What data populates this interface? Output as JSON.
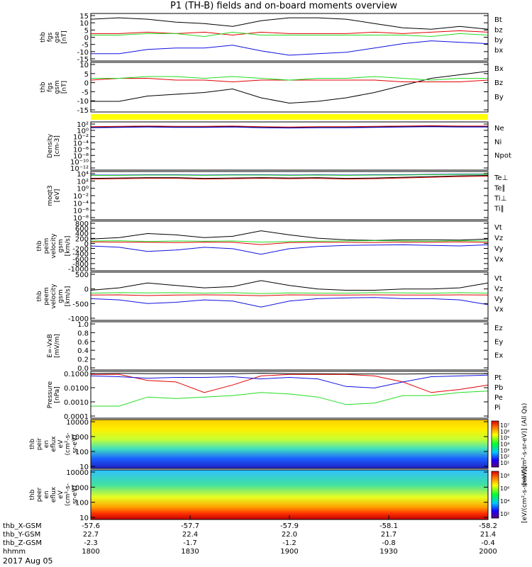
{
  "title": "P1 (TH-B) fields and on-board moments overview",
  "date_label": "2017 Aug 05",
  "colors": {
    "black": "#000000",
    "red": "#e00000",
    "green": "#22dd22",
    "blue": "#1010e0",
    "yellow": "#ffff00"
  },
  "chart_data": [
    {
      "type": "line",
      "panel": "fgs-gse",
      "ylabel": [
        "thb",
        "fgs",
        "gse",
        "[nT]"
      ],
      "y_ticks": [
        "15",
        "10",
        "5",
        "0",
        "-5",
        "-10",
        "-15"
      ],
      "ylim": [
        -17,
        16
      ],
      "series": [
        {
          "name": "Bt",
          "color": "#000000",
          "values": [
            12,
            13,
            12,
            10,
            9,
            7,
            11,
            13,
            13,
            12,
            9,
            6,
            5,
            7,
            5
          ]
        },
        {
          "name": "bz",
          "color": "#e00000",
          "values": [
            2,
            2,
            3,
            2,
            3,
            1,
            3,
            2,
            2,
            2,
            3,
            2,
            3,
            4,
            3
          ]
        },
        {
          "name": "by",
          "color": "#22dd22",
          "values": [
            1,
            1,
            2,
            2,
            0,
            3,
            1,
            1,
            1,
            1,
            1,
            1,
            0,
            2,
            1
          ]
        },
        {
          "name": "bx",
          "color": "#1010e0",
          "values": [
            -12,
            -12,
            -9,
            -8,
            -8,
            -6,
            -10,
            -13,
            -12,
            -11,
            -8,
            -5,
            -3,
            -4,
            -5
          ]
        }
      ]
    },
    {
      "type": "line",
      "panel": "fgs-gsm",
      "ylabel": [
        "thb",
        "fgs",
        "gsm",
        "[nT]"
      ],
      "y_ticks": [
        "10",
        "5",
        "0",
        "-5",
        "-10",
        "-15"
      ],
      "ylim": [
        -17,
        11
      ],
      "series": [
        {
          "name": "Bx",
          "color": "#000000",
          "values": [
            -11,
            -11,
            -8,
            -7,
            -6,
            -4,
            -9,
            -12,
            -11,
            -9,
            -6,
            -2,
            2,
            4,
            6
          ]
        },
        {
          "name": "Bz",
          "color": "#e00000",
          "values": [
            1,
            2,
            2,
            1,
            1,
            0,
            1,
            1,
            1,
            1,
            1,
            0,
            0,
            0,
            1
          ]
        },
        {
          "name": "By",
          "color": "#22dd22",
          "values": [
            2,
            2,
            3,
            3,
            2,
            3,
            2,
            1,
            2,
            2,
            3,
            2,
            1,
            2,
            2
          ]
        }
      ]
    },
    {
      "type": "line",
      "panel": "density",
      "ylabel": [
        "Density",
        "[cm-3]"
      ],
      "y_ticks": [
        "10²",
        "10⁰",
        "10⁻²",
        "10⁻⁴",
        "10⁻⁶",
        "10⁻⁸",
        "10⁻¹⁰",
        "10⁻¹²"
      ],
      "log": true,
      "ylim": [
        -13,
        2
      ],
      "series": [
        {
          "name": "Ne",
          "color": "#e00000",
          "values": [
            0.5,
            0.6,
            0.7,
            0.6,
            0.6,
            0.7,
            0.5,
            0.4,
            0.5,
            0.5,
            0.6,
            0.7,
            0.8,
            0.7,
            0.7
          ]
        },
        {
          "name": "Ni",
          "color": "#000000",
          "values": [
            0.3,
            0.4,
            0.5,
            0.4,
            0.4,
            0.5,
            0.3,
            0.2,
            0.3,
            0.3,
            0.4,
            0.5,
            0.6,
            0.5,
            0.5
          ]
        },
        {
          "name": "Npot",
          "color": "#1010e0",
          "values": [
            0.2,
            0.3,
            0.4,
            0.3,
            0.3,
            0.4,
            0.2,
            0.1,
            0.2,
            0.2,
            0.3,
            0.4,
            0.5,
            0.4,
            0.4
          ]
        }
      ]
    },
    {
      "type": "line",
      "panel": "temperature",
      "ylabel": [
        "moqt3",
        "[eV]"
      ],
      "y_ticks": [
        "10⁴",
        "10²",
        "10⁰",
        "10⁻²",
        "10⁻⁴",
        "10⁻⁶",
        "10⁻⁸"
      ],
      "log": true,
      "ylim": [
        -9,
        4.5
      ],
      "series": [
        {
          "name": "Te⊥",
          "color": "#e00000",
          "values": [
            2.4,
            2.5,
            2.6,
            2.6,
            2.4,
            2.5,
            2.6,
            2.5,
            2.6,
            2.4,
            2.5,
            2.7,
            2.9,
            3.1,
            3.2
          ]
        },
        {
          "name": "Te∥",
          "color": "#000000",
          "values": [
            2.6,
            2.7,
            2.8,
            2.8,
            2.6,
            2.7,
            2.8,
            2.7,
            2.8,
            2.6,
            2.7,
            2.9,
            3.1,
            3.3,
            3.4
          ]
        },
        {
          "name": "Ti⊥",
          "color": "#1010e0",
          "values": [
            3.5,
            3.5,
            3.6,
            3.6,
            3.5,
            3.6,
            3.6,
            3.5,
            3.6,
            3.5,
            3.6,
            3.6,
            3.7,
            3.8,
            3.8
          ]
        },
        {
          "name": "Ti∥",
          "color": "#22dd22",
          "values": [
            3.4,
            3.4,
            3.5,
            3.5,
            3.4,
            3.5,
            3.5,
            3.4,
            3.5,
            3.4,
            3.5,
            3.5,
            3.6,
            3.7,
            3.7
          ]
        }
      ]
    },
    {
      "type": "line",
      "panel": "peim-velocity",
      "ylabel": [
        "thb",
        "peim",
        "velocity",
        "gsm",
        "[km/s]"
      ],
      "y_ticks": [
        "800",
        "600",
        "400",
        "200",
        "0",
        "-200",
        "-400",
        "-600",
        "-800",
        "-1000"
      ],
      "ylim": [
        -1000,
        800
      ],
      "series": [
        {
          "name": "Vt",
          "color": "#000000",
          "values": [
            150,
            200,
            350,
            300,
            200,
            250,
            450,
            300,
            180,
            120,
            100,
            120,
            120,
            110,
            150
          ]
        },
        {
          "name": "Vz",
          "color": "#e00000",
          "values": [
            50,
            40,
            30,
            20,
            40,
            30,
            -50,
            20,
            30,
            30,
            20,
            40,
            30,
            50,
            30
          ]
        },
        {
          "name": "Vy",
          "color": "#22dd22",
          "values": [
            80,
            90,
            60,
            80,
            70,
            80,
            40,
            60,
            70,
            80,
            90,
            80,
            70,
            90,
            80
          ]
        },
        {
          "name": "Vx",
          "color": "#1010e0",
          "values": [
            -100,
            -150,
            -300,
            -250,
            -150,
            -200,
            -400,
            -200,
            -120,
            -80,
            -70,
            -60,
            -80,
            -100,
            -60
          ]
        }
      ]
    },
    {
      "type": "line",
      "panel": "peem-velocity",
      "ylabel": [
        "thb",
        "peem",
        "velocity",
        "gsm",
        "[km/s]"
      ],
      "y_ticks": [
        "500",
        "0",
        "-500",
        "-1000"
      ],
      "ylim": [
        -1050,
        950
      ],
      "series": [
        {
          "name": "Vt",
          "color": "#000000",
          "values": [
            200,
            300,
            500,
            400,
            300,
            350,
            600,
            400,
            250,
            200,
            200,
            250,
            250,
            300,
            500
          ]
        },
        {
          "name": "Vz",
          "color": "#e00000",
          "values": [
            0,
            10,
            -20,
            0,
            10,
            0,
            -30,
            10,
            0,
            0,
            10,
            0,
            0,
            10,
            0
          ]
        },
        {
          "name": "Vy",
          "color": "#22dd22",
          "values": [
            80,
            100,
            90,
            100,
            80,
            100,
            60,
            90,
            80,
            80,
            100,
            90,
            80,
            100,
            80
          ]
        },
        {
          "name": "Vx",
          "color": "#1010e0",
          "values": [
            -150,
            -200,
            -350,
            -300,
            -200,
            -250,
            -500,
            -250,
            -150,
            -120,
            -100,
            -150,
            -150,
            -200,
            -400
          ]
        }
      ]
    },
    {
      "type": "line",
      "panel": "efield",
      "ylabel": [
        "E=-VxB",
        "[mV/m]"
      ],
      "y_ticks": [
        "1.0",
        "0.8",
        "0.6",
        "0.4",
        "0.2",
        "0.0"
      ],
      "ylim": [
        0,
        1
      ],
      "series": [
        {
          "name": "Ez",
          "color": "#e00000",
          "values": []
        },
        {
          "name": "Ey",
          "color": "#22dd22",
          "values": []
        },
        {
          "name": "Ex",
          "color": "#1010e0",
          "values": []
        }
      ]
    },
    {
      "type": "line",
      "panel": "pressure",
      "ylabel": [
        "Pressure",
        "[nPa]"
      ],
      "y_ticks": [
        "0.1000",
        "0.0100",
        "0.0010",
        "0.0001"
      ],
      "log": true,
      "ylim": [
        -4,
        -0.9
      ],
      "series": [
        {
          "name": "Pt",
          "color": "#000000",
          "values": [
            -1.05,
            -1.03,
            -1.05,
            -1.05,
            -1.06,
            -1.06,
            -1.02,
            -1.05,
            -1.06,
            -1.07,
            -1.07,
            -1.08,
            -1.06,
            -1.05,
            -1.05
          ]
        },
        {
          "name": "Pb",
          "color": "#e00000",
          "values": [
            -1.1,
            -1.1,
            -1.5,
            -1.6,
            -2.3,
            -1.8,
            -1.2,
            -1.1,
            -1.1,
            -1.1,
            -1.2,
            -1.6,
            -2.3,
            -2.1,
            -1.8
          ]
        },
        {
          "name": "Pe",
          "color": "#22dd22",
          "values": [
            -3.2,
            -3.2,
            -2.6,
            -2.7,
            -2.6,
            -2.5,
            -2.3,
            -2.4,
            -2.6,
            -3.1,
            -3.0,
            -2.5,
            -2.5,
            -2.3,
            -2.2
          ]
        },
        {
          "name": "Pi",
          "color": "#1010e0",
          "values": [
            -1.2,
            -1.25,
            -1.35,
            -1.3,
            -1.3,
            -1.25,
            -1.4,
            -1.3,
            -1.4,
            -1.9,
            -2.0,
            -1.6,
            -1.25,
            -1.2,
            -1.15
          ]
        }
      ]
    },
    {
      "type": "heatmap",
      "panel": "peir-spectrogram",
      "ylabel": [
        "thb",
        "peir",
        "en",
        "eflux",
        "eV",
        "(cm²-s-",
        "sr-eV)"
      ],
      "y_ticks": [
        "10000",
        "1000",
        "100",
        "10"
      ],
      "colorbar_label": "[eV/(cm²-s-sr-eV)] (All Qs)",
      "colorbar_ticks": [
        "10⁷",
        "10⁶",
        "10⁵",
        "10⁴",
        "10³",
        "10²",
        "10¹"
      ]
    },
    {
      "type": "heatmap",
      "panel": "peer-spectrogram",
      "ylabel": [
        "thb",
        "peer",
        "en",
        "eflux",
        "eV",
        "(cm²-s-",
        "sr-eV)"
      ],
      "y_ticks": [
        "10000",
        "1000",
        "100",
        "10"
      ],
      "colorbar_label": "[eV/(cm²-s-sr-eV)]",
      "colorbar_ticks": [
        "10⁸",
        "10⁶",
        "10⁴",
        "10²"
      ]
    }
  ],
  "x_axis": {
    "row_labels": [
      "thb_X-GSM",
      "thb_Y-GSM",
      "thb_Z-GSM",
      "hhmm"
    ],
    "ticks": [
      {
        "x_gsm": "-57.6",
        "y_gsm": "22.7",
        "z_gsm": "-2.3",
        "hhmm": "1800"
      },
      {
        "x_gsm": "-57.7",
        "y_gsm": "22.4",
        "z_gsm": "-1.7",
        "hhmm": "1830"
      },
      {
        "x_gsm": "-57.9",
        "y_gsm": "22.0",
        "z_gsm": "-1.2",
        "hhmm": "1900"
      },
      {
        "x_gsm": "-58.1",
        "y_gsm": "21.7",
        "z_gsm": "-0.8",
        "hhmm": "1930"
      },
      {
        "x_gsm": "-58.2",
        "y_gsm": "21.4",
        "z_gsm": "-0.4",
        "hhmm": "2000"
      }
    ]
  }
}
